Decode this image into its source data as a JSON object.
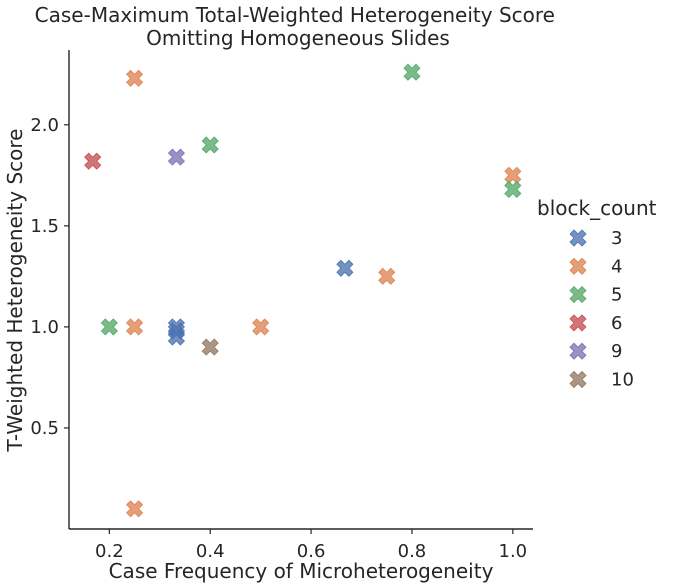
{
  "chart_data": {
    "type": "scatter",
    "title": "Case-Maximum Total-Weighted Heterogeneity Score\nOmitting Homogeneous Slides",
    "xlabel": "Case Frequency of Microheterogeneity",
    "ylabel": "T-Weighted Heterogeneity Score",
    "xlim": [
      0.12,
      1.04
    ],
    "ylim": [
      0.0,
      2.37
    ],
    "xticks": [
      "0.2",
      "0.4",
      "0.6",
      "0.8",
      "1.0"
    ],
    "xtick_values": [
      0.2,
      0.4,
      0.6,
      0.8,
      1.0
    ],
    "yticks": [
      "0.5",
      "1.0",
      "1.5",
      "2.0"
    ],
    "ytick_values": [
      0.5,
      1.0,
      1.5,
      2.0
    ],
    "grid": false,
    "legend_title": "block_count",
    "legend_position": "right",
    "marker": "X",
    "series": [
      {
        "name": "3",
        "color": "#4c72b0",
        "points": [
          [
            0.333,
            0.95
          ],
          [
            0.333,
            0.98
          ],
          [
            0.333,
            1.0
          ],
          [
            0.667,
            1.29
          ]
        ]
      },
      {
        "name": "4",
        "color": "#dd8452",
        "points": [
          [
            0.25,
            2.23
          ],
          [
            0.25,
            1.0
          ],
          [
            0.25,
            0.1
          ],
          [
            0.5,
            1.0
          ],
          [
            0.75,
            1.25
          ],
          [
            1.0,
            1.75
          ]
        ]
      },
      {
        "name": "5",
        "color": "#55a868",
        "points": [
          [
            0.2,
            1.0
          ],
          [
            0.4,
            1.9
          ],
          [
            0.8,
            2.26
          ],
          [
            1.0,
            1.68
          ]
        ]
      },
      {
        "name": "6",
        "color": "#c44e52",
        "points": [
          [
            0.167,
            1.82
          ]
        ]
      },
      {
        "name": "9",
        "color": "#8172b3",
        "points": [
          [
            0.333,
            1.84
          ]
        ]
      },
      {
        "name": "10",
        "color": "#937860",
        "points": [
          [
            0.4,
            0.9
          ]
        ]
      }
    ]
  }
}
